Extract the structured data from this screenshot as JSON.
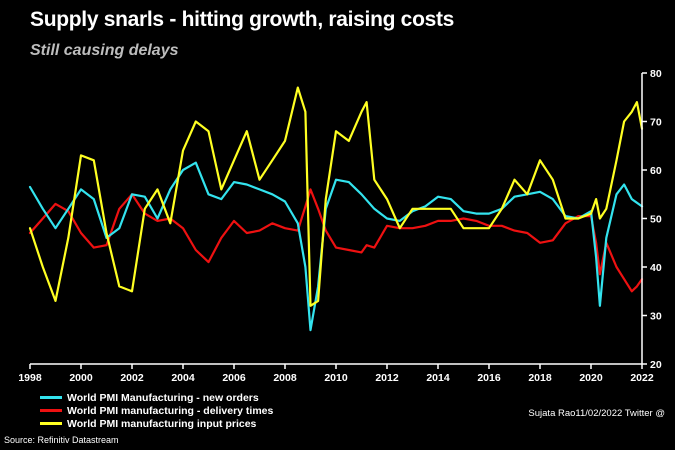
{
  "header": {
    "title": "Supply snarls - hitting growth, raising costs",
    "subtitle": "Still causing delays"
  },
  "footer": {
    "source": "Source: Refinitiv Datastream",
    "credit": "Sujata Rao11/02/2022 Twitter @"
  },
  "colors": {
    "background": "#000000",
    "new_orders": "#33e3ee",
    "delivery_times": "#ee1111",
    "input_prices": "#ffff22",
    "axis": "#ffffff"
  },
  "chart_data": {
    "type": "line",
    "title": "Supply snarls - hitting growth, raising costs",
    "subtitle": "Still causing delays",
    "xlabel": "",
    "ylabel": "",
    "x_ticks": [
      "1998",
      "2000",
      "2002",
      "2004",
      "2006",
      "2008",
      "2010",
      "2012",
      "2014",
      "2016",
      "2018",
      "2020",
      "2022"
    ],
    "y_ticks": [
      "20",
      "30",
      "40",
      "50",
      "60",
      "70",
      "80"
    ],
    "xlim": [
      1998,
      2022
    ],
    "ylim": [
      20,
      80
    ],
    "y_axis_side": "right",
    "legend_position": "bottom-left",
    "series": [
      {
        "name": "World PMI Manufacturing - new orders",
        "x": [
          1998.0,
          1998.5,
          1999.0,
          1999.5,
          2000.0,
          2000.5,
          2001.0,
          2001.5,
          2002.0,
          2002.5,
          2003.0,
          2003.5,
          2004.0,
          2004.5,
          2005.0,
          2005.5,
          2006.0,
          2006.5,
          2007.0,
          2007.5,
          2008.0,
          2008.5,
          2008.8,
          2009.0,
          2009.3,
          2009.6,
          2010.0,
          2010.5,
          2011.0,
          2011.5,
          2012.0,
          2012.5,
          2013.0,
          2013.5,
          2014.0,
          2014.5,
          2015.0,
          2015.5,
          2016.0,
          2016.5,
          2017.0,
          2017.5,
          2018.0,
          2018.5,
          2019.0,
          2019.5,
          2020.0,
          2020.2,
          2020.35,
          2020.6,
          2021.0,
          2021.3,
          2021.6,
          2022.0
        ],
        "values": [
          56.5,
          52.0,
          48.0,
          52.0,
          56.0,
          54.0,
          46.0,
          48.0,
          55.0,
          54.5,
          50.0,
          56.0,
          60.0,
          61.5,
          55.0,
          54.0,
          57.5,
          57.0,
          56.0,
          55.0,
          53.5,
          49.0,
          40.0,
          27.0,
          36.0,
          52.0,
          58.0,
          57.5,
          55.0,
          52.0,
          50.0,
          49.5,
          51.5,
          52.5,
          54.5,
          54.0,
          51.5,
          51.0,
          51.0,
          52.0,
          54.5,
          55.0,
          55.5,
          54.0,
          50.5,
          50.0,
          51.5,
          42.0,
          32.0,
          46.0,
          55.0,
          57.0,
          54.0,
          52.5
        ]
      },
      {
        "name": "World PMI manufacturing - delivery times",
        "x": [
          1998.0,
          1998.5,
          1999.0,
          1999.5,
          2000.0,
          2000.5,
          2001.0,
          2001.5,
          2002.0,
          2002.5,
          2003.0,
          2003.5,
          2004.0,
          2004.5,
          2005.0,
          2005.5,
          2006.0,
          2006.5,
          2007.0,
          2007.5,
          2008.0,
          2008.5,
          2008.8,
          2009.0,
          2009.3,
          2009.6,
          2010.0,
          2010.5,
          2011.0,
          2011.2,
          2011.5,
          2012.0,
          2012.5,
          2013.0,
          2013.5,
          2014.0,
          2014.5,
          2015.0,
          2015.5,
          2016.0,
          2016.5,
          2017.0,
          2017.5,
          2018.0,
          2018.5,
          2019.0,
          2019.5,
          2020.0,
          2020.2,
          2020.35,
          2020.6,
          2021.0,
          2021.3,
          2021.6,
          2021.8,
          2022.0
        ],
        "values": [
          47.0,
          50.0,
          53.0,
          51.5,
          47.0,
          44.0,
          44.5,
          52.0,
          55.0,
          51.0,
          49.5,
          50.0,
          48.0,
          43.5,
          41.0,
          46.0,
          49.5,
          47.0,
          47.5,
          49.0,
          48.0,
          47.5,
          52.5,
          56.0,
          52.0,
          47.5,
          44.0,
          43.5,
          43.0,
          44.5,
          44.0,
          48.5,
          48.0,
          48.0,
          48.5,
          49.5,
          49.5,
          50.0,
          49.5,
          48.5,
          48.5,
          47.5,
          47.0,
          45.0,
          45.5,
          49.0,
          50.5,
          50.5,
          45.0,
          38.5,
          45.0,
          40.0,
          37.5,
          35.0,
          36.0,
          37.5
        ]
      },
      {
        "name": "World PMI manufacturing input prices",
        "x": [
          1998.0,
          1998.5,
          1999.0,
          1999.5,
          2000.0,
          2000.5,
          2001.0,
          2001.5,
          2002.0,
          2002.5,
          2003.0,
          2003.5,
          2004.0,
          2004.5,
          2005.0,
          2005.5,
          2006.0,
          2006.5,
          2007.0,
          2007.5,
          2008.0,
          2008.5,
          2008.8,
          2009.0,
          2009.3,
          2009.6,
          2010.0,
          2010.5,
          2011.0,
          2011.2,
          2011.5,
          2012.0,
          2012.5,
          2013.0,
          2013.5,
          2014.0,
          2014.5,
          2015.0,
          2015.5,
          2016.0,
          2016.5,
          2017.0,
          2017.5,
          2018.0,
          2018.5,
          2019.0,
          2019.5,
          2020.0,
          2020.2,
          2020.35,
          2020.6,
          2021.0,
          2021.3,
          2021.6,
          2021.8,
          2022.0
        ],
        "values": [
          48.0,
          40.0,
          33.0,
          46.0,
          63.0,
          62.0,
          47.0,
          36.0,
          35.0,
          52.0,
          56.0,
          49.0,
          64.0,
          70.0,
          68.0,
          56.0,
          62.0,
          68.0,
          58.0,
          62.0,
          66.0,
          77.0,
          72.0,
          32.0,
          33.0,
          54.0,
          68.0,
          66.0,
          72.0,
          74.0,
          58.0,
          54.0,
          48.0,
          52.0,
          52.0,
          52.0,
          52.0,
          48.0,
          48.0,
          48.0,
          52.0,
          58.0,
          55.0,
          62.0,
          58.0,
          50.0,
          50.0,
          51.0,
          54.0,
          50.0,
          52.0,
          62.0,
          70.0,
          72.0,
          74.0,
          68.5
        ]
      }
    ]
  }
}
